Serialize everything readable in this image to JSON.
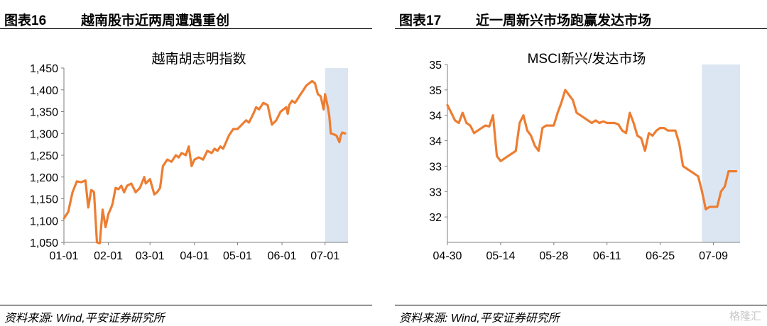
{
  "panels": [
    {
      "fig_label": "图表16",
      "fig_title": "越南股市近两周遭遇重创",
      "source": "资料来源: Wind,平安证券研究所"
    },
    {
      "fig_label": "图表17",
      "fig_title": "近一周新兴市场跑赢发达市场",
      "source": "资料来源: Wind,平安证券研究所"
    }
  ],
  "watermark": "格隆汇",
  "chart_data": [
    {
      "type": "line",
      "title": "越南胡志明指数",
      "xlabel": "",
      "ylabel": "",
      "ylim": [
        1050,
        1450
      ],
      "yticks": [
        "1,450",
        "1,400",
        "1,350",
        "1,300",
        "1,250",
        "1,200",
        "1,150",
        "1,100",
        "1,050"
      ],
      "ytick_values": [
        1450,
        1400,
        1350,
        1300,
        1250,
        1200,
        1150,
        1100,
        1050
      ],
      "xticks": [
        "01-01",
        "02-01",
        "03-01",
        "04-01",
        "05-01",
        "06-01",
        "07-01"
      ],
      "xtick_dates": [
        "2024-01-01",
        "2024-02-01",
        "2024-03-01",
        "2024-04-01",
        "2024-05-01",
        "2024-06-01",
        "2024-07-01"
      ],
      "xlim": [
        "2024-01-01",
        "2024-07-17"
      ],
      "highlight": [
        "2024-07-01",
        "2024-07-17"
      ],
      "line_color": "#ED7D31",
      "highlight_color": "#DCE6F2",
      "grid": false,
      "x": [
        "2024-01-01",
        "2024-01-04",
        "2024-01-07",
        "2024-01-10",
        "2024-01-13",
        "2024-01-16",
        "2024-01-18",
        "2024-01-20",
        "2024-01-21",
        "2024-01-22",
        "2024-01-24",
        "2024-01-26",
        "2024-01-28",
        "2024-01-30",
        "2024-02-01",
        "2024-02-03",
        "2024-02-04",
        "2024-02-06",
        "2024-02-08",
        "2024-02-10",
        "2024-02-12",
        "2024-02-14",
        "2024-02-17",
        "2024-02-20",
        "2024-02-23",
        "2024-02-26",
        "2024-02-27",
        "2024-03-01",
        "2024-03-04",
        "2024-03-06",
        "2024-03-08",
        "2024-03-10",
        "2024-03-13",
        "2024-03-16",
        "2024-03-19",
        "2024-03-21",
        "2024-03-23",
        "2024-03-26",
        "2024-03-28",
        "2024-03-30",
        "2024-04-01",
        "2024-04-04",
        "2024-04-07",
        "2024-04-10",
        "2024-04-13",
        "2024-04-15",
        "2024-04-17",
        "2024-04-19",
        "2024-04-21",
        "2024-04-23",
        "2024-04-25",
        "2024-04-28",
        "2024-05-01",
        "2024-05-04",
        "2024-05-07",
        "2024-05-09",
        "2024-05-12",
        "2024-05-14",
        "2024-05-16",
        "2024-05-19",
        "2024-05-22",
        "2024-05-25",
        "2024-05-28",
        "2024-05-31",
        "2024-06-02",
        "2024-06-04",
        "2024-06-05",
        "2024-06-06",
        "2024-06-08",
        "2024-06-10",
        "2024-06-12",
        "2024-06-14",
        "2024-06-16",
        "2024-06-18",
        "2024-06-20",
        "2024-06-22",
        "2024-06-24",
        "2024-06-26",
        "2024-06-28",
        "2024-06-30",
        "2024-07-01",
        "2024-07-03",
        "2024-07-04",
        "2024-07-05",
        "2024-07-07",
        "2024-07-09",
        "2024-07-11",
        "2024-07-12",
        "2024-07-13",
        "2024-07-15"
      ],
      "series": [
        {
          "name": "",
          "values": [
            1105,
            1120,
            1165,
            1190,
            1188,
            1192,
            1130,
            1170,
            1168,
            1165,
            1050,
            1048,
            1125,
            1085,
            1115,
            1130,
            1140,
            1175,
            1172,
            1180,
            1165,
            1180,
            1185,
            1165,
            1175,
            1200,
            1185,
            1195,
            1160,
            1165,
            1175,
            1225,
            1240,
            1235,
            1250,
            1245,
            1255,
            1250,
            1270,
            1225,
            1240,
            1245,
            1240,
            1260,
            1255,
            1265,
            1260,
            1270,
            1265,
            1280,
            1295,
            1310,
            1310,
            1320,
            1330,
            1325,
            1345,
            1360,
            1355,
            1370,
            1365,
            1320,
            1330,
            1350,
            1355,
            1360,
            1345,
            1365,
            1375,
            1370,
            1380,
            1390,
            1400,
            1410,
            1415,
            1420,
            1415,
            1390,
            1385,
            1355,
            1390,
            1360,
            1340,
            1300,
            1298,
            1295,
            1280,
            1295,
            1302,
            1300
          ]
        }
      ]
    },
    {
      "type": "line",
      "title": "MSCI新兴/发达市场",
      "xlabel": "",
      "ylabel": "",
      "ylim": [
        32,
        35.5
      ],
      "yticks": [
        "35",
        "35",
        "34",
        "34",
        "33",
        "33",
        "32"
      ],
      "ytick_values": [
        35.5,
        35,
        34.5,
        34,
        33.5,
        33,
        32.5
      ],
      "xticks": [
        "04-30",
        "05-14",
        "05-28",
        "06-11",
        "06-25",
        "07-09"
      ],
      "xtick_dates": [
        "2024-04-30",
        "2024-05-14",
        "2024-05-28",
        "2024-06-11",
        "2024-06-25",
        "2024-07-09"
      ],
      "xlim": [
        "2024-04-30",
        "2024-07-16"
      ],
      "highlight": [
        "2024-07-06",
        "2024-07-16"
      ],
      "line_color": "#ED7D31",
      "highlight_color": "#DCE6F2",
      "grid": false,
      "x": [
        "2024-04-30",
        "2024-05-01",
        "2024-05-02",
        "2024-05-03",
        "2024-05-04",
        "2024-05-05",
        "2024-05-06",
        "2024-05-07",
        "2024-05-08",
        "2024-05-09",
        "2024-05-10",
        "2024-05-11",
        "2024-05-12",
        "2024-05-13",
        "2024-05-14",
        "2024-05-15",
        "2024-05-16",
        "2024-05-17",
        "2024-05-18",
        "2024-05-19",
        "2024-05-20",
        "2024-05-21",
        "2024-05-22",
        "2024-05-23",
        "2024-05-24",
        "2024-05-25",
        "2024-05-26",
        "2024-05-27",
        "2024-05-28",
        "2024-05-29",
        "2024-05-30",
        "2024-05-31",
        "2024-06-01",
        "2024-06-02",
        "2024-06-03",
        "2024-06-04",
        "2024-06-05",
        "2024-06-06",
        "2024-06-07",
        "2024-06-08",
        "2024-06-09",
        "2024-06-10",
        "2024-06-11",
        "2024-06-12",
        "2024-06-13",
        "2024-06-14",
        "2024-06-15",
        "2024-06-16",
        "2024-06-17",
        "2024-06-18",
        "2024-06-19",
        "2024-06-20",
        "2024-06-21",
        "2024-06-22",
        "2024-06-23",
        "2024-06-24",
        "2024-06-25",
        "2024-06-26",
        "2024-06-27",
        "2024-06-28",
        "2024-06-29",
        "2024-06-30",
        "2024-07-01",
        "2024-07-02",
        "2024-07-03",
        "2024-07-04",
        "2024-07-05",
        "2024-07-06",
        "2024-07-07",
        "2024-07-08",
        "2024-07-09",
        "2024-07-10",
        "2024-07-11",
        "2024-07-12",
        "2024-07-13",
        "2024-07-14",
        "2024-07-15"
      ],
      "series": [
        {
          "name": "",
          "values": [
            34.7,
            34.55,
            34.4,
            34.35,
            34.55,
            34.35,
            34.3,
            34.15,
            34.2,
            34.25,
            34.3,
            34.28,
            34.5,
            33.7,
            33.6,
            33.65,
            33.7,
            33.75,
            33.8,
            34.35,
            34.5,
            34.2,
            34.1,
            33.9,
            33.8,
            34.25,
            34.3,
            34.3,
            34.3,
            34.55,
            34.75,
            35.0,
            34.9,
            34.8,
            34.55,
            34.5,
            34.45,
            34.4,
            34.35,
            34.4,
            34.35,
            34.38,
            34.35,
            34.35,
            34.35,
            34.32,
            34.2,
            34.15,
            34.55,
            34.35,
            34.1,
            34.05,
            33.8,
            34.15,
            34.1,
            34.2,
            34.25,
            34.25,
            34.2,
            34.2,
            34.2,
            33.95,
            33.5,
            33.45,
            33.4,
            33.35,
            33.3,
            33.0,
            32.65,
            32.7,
            32.7,
            32.7,
            33.0,
            33.1,
            33.4,
            33.4,
            33.4
          ]
        }
      ]
    }
  ]
}
